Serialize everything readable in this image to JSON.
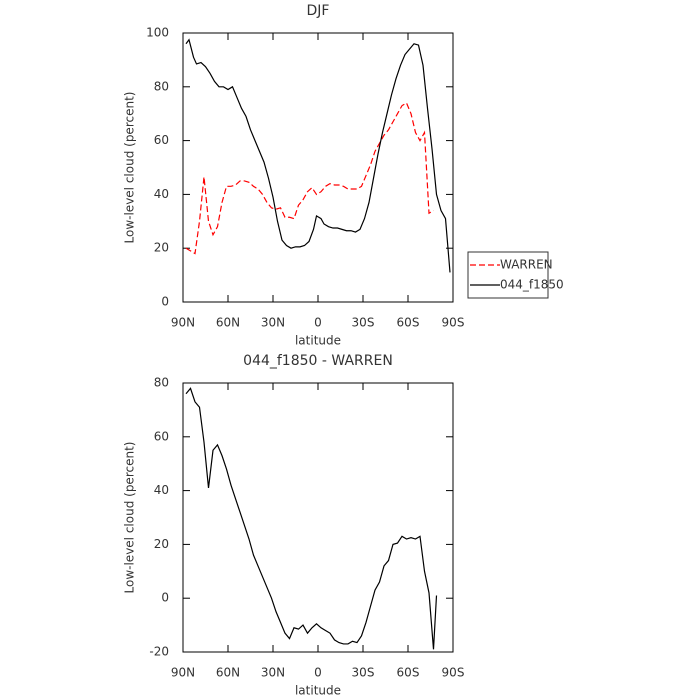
{
  "chart_data": [
    {
      "type": "line",
      "title": "DJF",
      "xlabel": "latitude",
      "ylabel": "Low-level cloud (percent)",
      "xlim": [
        90,
        -90
      ],
      "ylim": [
        0,
        100
      ],
      "xticks": [
        {
          "value": 90,
          "label": "90N"
        },
        {
          "value": 60,
          "label": "60N"
        },
        {
          "value": 30,
          "label": "30N"
        },
        0,
        {
          "value": -30,
          "label": "30S"
        },
        {
          "value": -60,
          "label": "60S"
        },
        {
          "value": -90,
          "label": "90S"
        }
      ],
      "yticks": [
        0,
        20,
        40,
        60,
        80,
        100
      ],
      "legend": "right",
      "series": [
        {
          "name": "WARREN",
          "color": "#ff0000",
          "line_style": "dashed",
          "x": [
            88,
            85,
            82,
            79,
            76,
            73,
            70,
            67,
            64,
            61,
            58,
            55,
            52,
            49,
            46,
            43,
            40,
            37,
            34,
            31,
            28,
            25,
            22,
            19,
            16,
            13,
            10,
            7,
            4,
            1,
            -2,
            -5,
            -8,
            -11,
            -14,
            -17,
            -20,
            -23,
            -26,
            -29,
            -32,
            -35,
            -38,
            -41,
            -44,
            -47,
            -50,
            -53,
            -56,
            -59,
            -62,
            -65,
            -68,
            -71,
            -74,
            -77
          ],
          "values": [
            20,
            19,
            18,
            30,
            46.5,
            30,
            25,
            28,
            37,
            43,
            43,
            43.5,
            45,
            45,
            44.5,
            43,
            42,
            40,
            37,
            35,
            34.5,
            35,
            31.5,
            31.5,
            31,
            36,
            38,
            41,
            42.5,
            40,
            41,
            43,
            44,
            43.5,
            43.5,
            43,
            42,
            42,
            42,
            43,
            47,
            51,
            56,
            59,
            62,
            64,
            67,
            70,
            73,
            74,
            70,
            63,
            60,
            63,
            33,
            34
          ]
        },
        {
          "name": "044_f1850",
          "color": "#000000",
          "line_style": "solid",
          "x": [
            88,
            86,
            83,
            81,
            78,
            75,
            72,
            69,
            66,
            63,
            60,
            57,
            54,
            51,
            48,
            45,
            42,
            39,
            36,
            33,
            30,
            27,
            24,
            21,
            18,
            15,
            12,
            9,
            6,
            3,
            1,
            -2,
            -4,
            -7,
            -10,
            -13,
            -16,
            -19,
            -22,
            -25,
            -28,
            -31,
            -34,
            -37,
            -40,
            -43,
            -46,
            -49,
            -52,
            -55,
            -58,
            -61,
            -64,
            -67,
            -70,
            -73,
            -76,
            -79,
            -82,
            -85,
            -88
          ],
          "values": [
            96,
            97.5,
            91,
            88.5,
            89,
            87.5,
            85,
            82,
            80,
            80,
            79,
            80,
            76,
            72,
            69,
            64,
            60,
            56,
            52,
            46,
            39,
            30,
            23,
            21,
            20,
            20.5,
            20.5,
            21,
            22.5,
            27,
            32,
            31,
            29,
            28,
            27.5,
            27.5,
            27,
            26.5,
            26.5,
            26,
            27,
            31,
            37,
            46,
            55,
            63,
            70,
            77,
            83,
            88,
            92,
            94,
            96,
            95.5,
            88,
            72,
            57,
            40,
            34,
            31,
            11
          ]
        }
      ]
    },
    {
      "type": "line",
      "title": "044_f1850 - WARREN",
      "xlabel": "latitude",
      "ylabel": "Low-level cloud (percent)",
      "xlim": [
        90,
        -90
      ],
      "ylim": [
        -20,
        80
      ],
      "xticks": [
        {
          "value": 90,
          "label": "90N"
        },
        {
          "value": 60,
          "label": "60N"
        },
        {
          "value": 30,
          "label": "30N"
        },
        0,
        {
          "value": -30,
          "label": "30S"
        },
        {
          "value": -60,
          "label": "60S"
        },
        {
          "value": -90,
          "label": "90S"
        }
      ],
      "yticks": [
        -20,
        0,
        20,
        40,
        60,
        80
      ],
      "series": [
        {
          "color": "#000000",
          "line_style": "solid",
          "x": [
            88,
            85,
            82,
            79,
            76,
            73,
            70,
            67,
            64,
            61,
            58,
            55,
            52,
            49,
            46,
            43,
            40,
            37,
            34,
            31,
            28,
            25,
            22,
            19,
            16,
            13,
            10,
            7,
            4,
            1,
            -2,
            -5,
            -8,
            -11,
            -14,
            -17,
            -20,
            -23,
            -26,
            -29,
            -32,
            -35,
            -38,
            -41,
            -44,
            -47,
            -50,
            -53,
            -56,
            -59,
            -62,
            -65,
            -68,
            -71,
            -74,
            -77,
            -79
          ],
          "values": [
            76,
            78,
            73,
            71,
            58,
            41,
            55,
            57,
            53,
            48,
            42,
            37,
            32,
            27,
            22,
            16,
            12,
            8,
            4,
            0,
            -5,
            -9,
            -13,
            -15,
            -11,
            -11.5,
            -10,
            -13,
            -11,
            -9.5,
            -11,
            -12,
            -13,
            -15.5,
            -16.5,
            -17,
            -17,
            -16,
            -16.5,
            -14,
            -9,
            -3,
            3,
            6,
            12,
            14,
            20,
            20.5,
            23,
            22,
            22.5,
            22,
            23,
            10,
            2,
            -19,
            1
          ]
        }
      ]
    }
  ]
}
